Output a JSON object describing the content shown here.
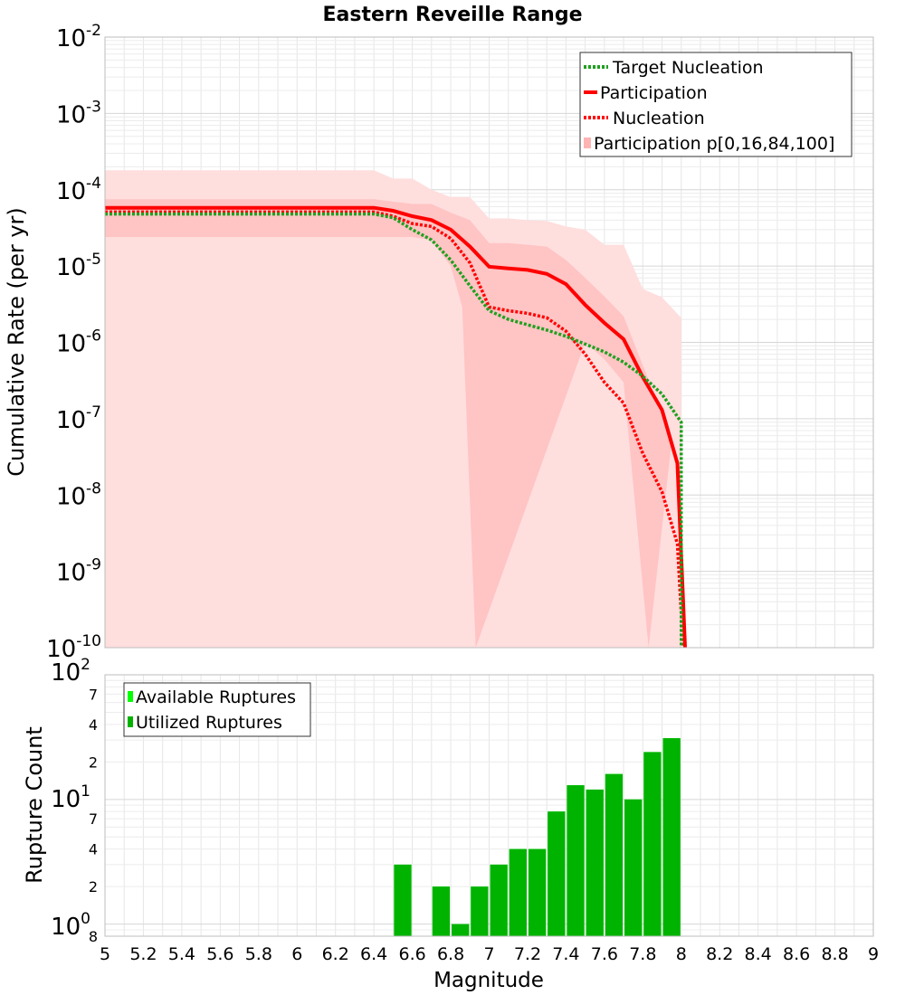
{
  "chart_data": [
    {
      "type": "line",
      "title": "Eastern Reveille Range",
      "xlabel": "",
      "ylabel": "Cumulative Rate (per yr)",
      "xlim": [
        5,
        9
      ],
      "ylim": [
        1e-10,
        0.01
      ],
      "yscale": "log",
      "grid": true,
      "legend_position": "top-right",
      "y_tick_exponents": [
        -2,
        -3,
        -4,
        -5,
        -6,
        -7,
        -8,
        -9,
        -10
      ],
      "y_tick_base": "10",
      "series": [
        {
          "name": "Target Nucleation",
          "style": "dotted",
          "color": "#1fa01f",
          "x": [
            5.0,
            6.4,
            6.5,
            6.6,
            6.7,
            6.8,
            6.9,
            7.0,
            7.1,
            7.2,
            7.3,
            7.4,
            7.5,
            7.6,
            7.7,
            7.8,
            7.9,
            8.0,
            8.0
          ],
          "y": [
            4.8e-05,
            4.8e-05,
            4.3e-05,
            3e-05,
            2.2e-05,
            1.2e-05,
            5.5e-06,
            2.6e-06,
            2e-06,
            1.7e-06,
            1.45e-06,
            1.2e-06,
            9.5e-07,
            7.5e-07,
            5.5e-07,
            3.6e-07,
            2.1e-07,
            9e-08,
            1e-10
          ]
        },
        {
          "name": "Participation",
          "style": "solid",
          "color": "#ff0000",
          "x": [
            5.0,
            6.4,
            6.5,
            6.6,
            6.7,
            6.8,
            6.9,
            7.0,
            7.1,
            7.2,
            7.3,
            7.4,
            7.5,
            7.6,
            7.7,
            7.8,
            7.9,
            7.98,
            8.02
          ],
          "y": [
            5.8e-05,
            5.8e-05,
            5.3e-05,
            4.5e-05,
            4e-05,
            3e-05,
            1.8e-05,
            9.8e-06,
            9.3e-06,
            8.9e-06,
            7.9e-06,
            5.8e-06,
            3.1e-06,
            1.8e-06,
            1.1e-06,
            3.5e-07,
            1.3e-07,
            2.6e-08,
            1e-10
          ]
        },
        {
          "name": "Nucleation",
          "style": "dotted",
          "color": "#ff0000",
          "x": [
            5.0,
            6.4,
            6.5,
            6.6,
            6.7,
            6.8,
            6.9,
            7.0,
            7.1,
            7.2,
            7.3,
            7.4,
            7.5,
            7.6,
            7.7,
            7.8,
            7.9,
            7.98,
            8.01
          ],
          "y": [
            5.1e-05,
            5.1e-05,
            4.5e-05,
            3.6e-05,
            3.3e-05,
            2.3e-05,
            1.1e-05,
            2.9e-06,
            2.6e-06,
            2.4e-06,
            2.1e-06,
            1.4e-06,
            7e-07,
            3e-07,
            1.6e-07,
            3.5e-08,
            1.1e-08,
            2.3e-09,
            1e-10
          ]
        },
        {
          "name": "Participation p[0,16,84,100]",
          "style": "band",
          "color": "#ffb4b4",
          "outer_x": [
            5.0,
            6.4,
            6.5,
            6.6,
            6.7,
            6.8,
            6.9,
            7.0,
            7.1,
            7.2,
            7.3,
            7.4,
            7.5,
            7.6,
            7.7,
            7.8,
            7.9,
            8.0
          ],
          "outer_upper": [
            0.00018,
            0.00018,
            0.00014,
            0.00014,
            0.0001,
            8e-05,
            8e-05,
            4.2e-05,
            4.2e-05,
            4e-05,
            3.9e-05,
            3.3e-05,
            3e-05,
            1.9e-05,
            1.9e-05,
            5e-06,
            3.9e-06,
            2.1e-06
          ],
          "inner_x": [
            5.0,
            6.4,
            6.5,
            6.6,
            6.7,
            6.8,
            6.9,
            7.0,
            7.1,
            7.2,
            7.3,
            7.4,
            7.5,
            7.6,
            7.7,
            7.8,
            7.9,
            7.95
          ],
          "inner_upper": [
            7.5e-05,
            7.5e-05,
            7e-05,
            6.5e-05,
            6.5e-05,
            5e-05,
            4e-05,
            2e-05,
            2e-05,
            1.9e-05,
            1.8e-05,
            1.2e-05,
            7e-06,
            4e-06,
            2.2e-06,
            5e-07,
            1.2e-07,
            5e-08
          ],
          "lower_x": [
            5.0,
            6.4,
            6.5,
            6.6,
            6.7,
            6.8,
            6.86,
            6.93
          ],
          "lower_y": [
            2.4e-05,
            2.4e-05,
            2.4e-05,
            2.4e-05,
            2.2e-05,
            1e-05,
            2.9e-06,
            1e-10
          ],
          "lower_inner_x": [
            7.5,
            7.6,
            7.7,
            7.83
          ],
          "lower_inner_y": [
            1e-06,
            6e-07,
            3e-07,
            1e-10
          ]
        }
      ]
    },
    {
      "type": "bar",
      "xlabel": "Magnitude",
      "ylabel": "Rupture Count",
      "xlim": [
        5,
        9
      ],
      "ylim": [
        0.8,
        100
      ],
      "yscale": "log",
      "grid": true,
      "legend_position": "top-left",
      "x_ticks": [
        "5",
        "5.2",
        "5.4",
        "5.6",
        "5.8",
        "6",
        "6.2",
        "6.4",
        "6.6",
        "6.8",
        "7",
        "7.2",
        "7.4",
        "7.6",
        "7.8",
        "8",
        "8.2",
        "8.4",
        "8.6",
        "8.8",
        "9"
      ],
      "y_tick_labels": {
        "major": [
          {
            "base": "10",
            "exp": "2"
          },
          {
            "base": "10",
            "exp": "1"
          },
          {
            "base": "10",
            "exp": "0"
          }
        ],
        "minor": [
          "7",
          "4",
          "2",
          "7",
          "4",
          "2",
          "8"
        ]
      },
      "bar_width": 0.1,
      "series": [
        {
          "name": "Available Ruptures",
          "color": "#00ff00",
          "x": [
            6.55,
            6.75,
            6.85,
            6.95,
            7.05,
            7.15,
            7.25,
            7.35,
            7.45,
            7.55,
            7.65,
            7.75,
            7.85,
            7.95
          ],
          "values": [
            3,
            2,
            1,
            2,
            3,
            4,
            4,
            8,
            13,
            12,
            16,
            10,
            24,
            31
          ]
        },
        {
          "name": "Utilized Ruptures",
          "color": "#00b300",
          "x": [
            6.55,
            6.75,
            6.85,
            6.95,
            7.05,
            7.15,
            7.25,
            7.35,
            7.45,
            7.55,
            7.65,
            7.75,
            7.85,
            7.95
          ],
          "values": [
            3,
            2,
            1,
            2,
            3,
            4,
            4,
            8,
            13,
            12,
            16,
            10,
            24,
            31
          ]
        }
      ]
    }
  ]
}
